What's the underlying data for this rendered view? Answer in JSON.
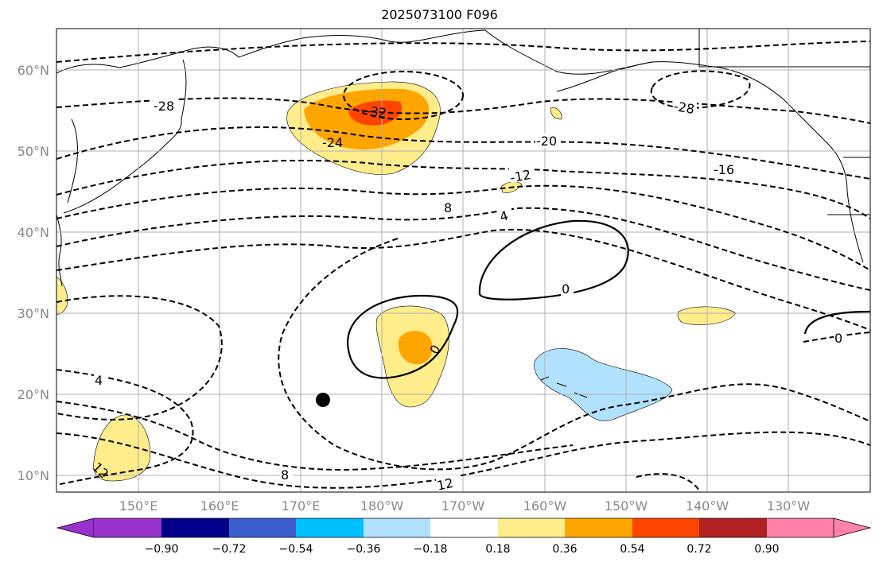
{
  "title": "2025073100 F096",
  "map": {
    "lat_labels": [
      "60°N",
      "50°N",
      "40°N",
      "30°N",
      "20°N",
      "10°N"
    ],
    "lon_labels": [
      "150°E",
      "160°E",
      "170°E",
      "180°W",
      "170°W",
      "160°W",
      "150°W",
      "140°W",
      "130°W"
    ],
    "contour_labels": [
      "-28",
      "-32",
      "-24",
      "-20",
      "-16",
      "-12",
      "-28",
      "8",
      "4",
      "0",
      "0",
      "0",
      "4",
      "8",
      "12",
      "12"
    ]
  },
  "colorbar": {
    "ticks": [
      "−0.90",
      "−0.72",
      "−0.54",
      "−0.36",
      "−0.18",
      "0.18",
      "0.36",
      "0.54",
      "0.72",
      "0.90"
    ],
    "colors": [
      "#9932cc",
      "#00008b",
      "#3a5fcd",
      "#00bfff",
      "#b0e2ff",
      "#ffffff",
      "#ffec8b",
      "#ffa500",
      "#ff4500",
      "#b22222",
      "#ff82ab"
    ]
  }
}
